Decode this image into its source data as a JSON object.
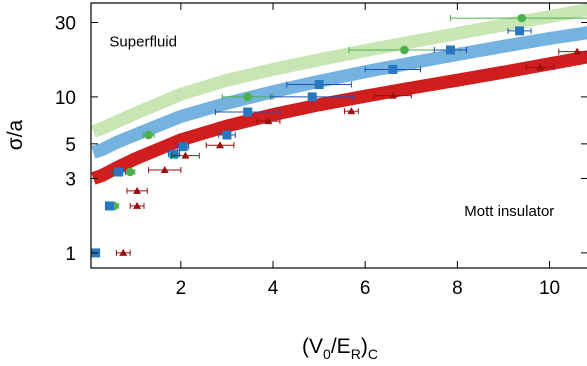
{
  "chart_data": {
    "type": "scatter",
    "title": "",
    "xlabel": "(V0/ER)C",
    "xlabel_parts": {
      "open": "(V",
      "sub1": "0",
      "slash": "/E",
      "sub2": "R",
      "close": ")",
      "sub3": "C"
    },
    "ylabel": "σ/a",
    "xlim": [
      0.05,
      10.9
    ],
    "ylim": [
      0.8,
      40
    ],
    "yscale": "log",
    "grid": false,
    "legend": "none",
    "x_ticks": [
      2,
      4,
      6,
      8,
      10
    ],
    "x_tick_labels": [
      "2",
      "4",
      "6",
      "8",
      "10"
    ],
    "y_ticks": [
      1,
      3,
      5,
      10,
      30
    ],
    "y_tick_labels": [
      "1",
      "3",
      "5",
      "10",
      "30"
    ],
    "annotations": [
      {
        "text": "Superfluid",
        "x": 0.45,
        "y": 21
      },
      {
        "text": "Mott insulator",
        "x": 8.15,
        "y": 1.72
      }
    ],
    "bands": [
      {
        "color": "#c8e6b4",
        "points": [
          [
            0.1,
            6.0
          ],
          [
            0.3,
            6.3
          ],
          [
            0.6,
            6.9
          ],
          [
            1.0,
            7.8
          ],
          [
            2.0,
            10.4
          ],
          [
            3.0,
            12.8
          ],
          [
            4.0,
            15.0
          ],
          [
            5.0,
            17.3
          ],
          [
            6.0,
            19.8
          ],
          [
            7.0,
            22.5
          ],
          [
            8.0,
            25.5
          ],
          [
            9.0,
            28.9
          ],
          [
            10.0,
            32.7
          ],
          [
            10.9,
            36.5
          ]
        ]
      },
      {
        "color": "#74b2e0",
        "points": [
          [
            0.1,
            4.4
          ],
          [
            0.3,
            4.6
          ],
          [
            0.6,
            5.1
          ],
          [
            1.0,
            5.7
          ],
          [
            2.0,
            7.5
          ],
          [
            3.0,
            9.1
          ],
          [
            4.0,
            10.8
          ],
          [
            5.0,
            12.6
          ],
          [
            6.0,
            14.5
          ],
          [
            7.0,
            16.5
          ],
          [
            8.0,
            18.7
          ],
          [
            9.0,
            21.1
          ],
          [
            10.0,
            23.7
          ],
          [
            10.9,
            26.0
          ]
        ]
      },
      {
        "color": "#d01e1e",
        "points": [
          [
            0.1,
            3.0
          ],
          [
            0.3,
            3.15
          ],
          [
            0.6,
            3.5
          ],
          [
            1.0,
            4.0
          ],
          [
            2.0,
            5.3
          ],
          [
            3.0,
            6.5
          ],
          [
            4.0,
            7.7
          ],
          [
            5.0,
            8.9
          ],
          [
            6.0,
            10.1
          ],
          [
            7.0,
            11.4
          ],
          [
            8.0,
            12.8
          ],
          [
            9.0,
            14.4
          ],
          [
            10.0,
            16.3
          ],
          [
            10.9,
            18.2
          ]
        ]
      }
    ],
    "series": [
      {
        "marker": "circle",
        "color": "#4cb04c",
        "errcolor": "#4cb04c",
        "points": [
          {
            "x": 0.15,
            "y": 1.0,
            "xerr": 0.05
          },
          {
            "x": 0.55,
            "y": 2.0,
            "xerr": 0.1
          },
          {
            "x": 0.9,
            "y": 3.3,
            "xerr": 0.1
          },
          {
            "x": 1.3,
            "y": 5.7,
            "xerr": 0.12
          },
          {
            "x": 3.45,
            "y": 10.0,
            "xerr": 0.55
          },
          {
            "x": 6.85,
            "y": 20.0,
            "xerr": 1.2
          },
          {
            "x": 9.4,
            "y": 32.0,
            "xerr": 1.55
          }
        ]
      },
      {
        "marker": "square",
        "color": "#2878c0",
        "errcolor": "#2050b0",
        "points": [
          {
            "x": 0.15,
            "y": 1.0,
            "xerr": 0.05
          },
          {
            "x": 0.45,
            "y": 2.0,
            "xerr": 0.08
          },
          {
            "x": 0.65,
            "y": 3.3,
            "xerr": 0.15
          },
          {
            "x": 1.85,
            "y": 4.3,
            "xerr": 0.12
          },
          {
            "x": 2.05,
            "y": 4.8,
            "xerr": 0.12
          },
          {
            "x": 3.0,
            "y": 5.7,
            "xerr": 0.18
          },
          {
            "x": 3.45,
            "y": 8.0,
            "xerr": 0.7
          },
          {
            "x": 4.85,
            "y": 10.0,
            "xerr": 0.9
          },
          {
            "x": 5.0,
            "y": 12.0,
            "xerr": 0.7
          },
          {
            "x": 6.6,
            "y": 15.0,
            "xerr": 0.6
          },
          {
            "x": 7.85,
            "y": 20.0,
            "xerr": 0.35
          },
          {
            "x": 9.35,
            "y": 26.5,
            "xerr": 0.25
          }
        ]
      },
      {
        "marker": "triangle",
        "color": "#9a1010",
        "errcolor": "#9a1010",
        "points": [
          {
            "x": 0.75,
            "y": 1.0,
            "xerr": 0.15
          },
          {
            "x": 1.05,
            "y": 2.0,
            "xerr": 0.15
          },
          {
            "x": 1.05,
            "y": 2.5,
            "xerr": 0.22
          },
          {
            "x": 1.65,
            "y": 3.4,
            "xerr": 0.35
          },
          {
            "x": 2.1,
            "y": 4.2,
            "xerr": 0.3
          },
          {
            "x": 2.85,
            "y": 4.9,
            "xerr": 0.3
          },
          {
            "x": 3.9,
            "y": 7.0,
            "xerr": 0.25
          },
          {
            "x": 5.7,
            "y": 8.1,
            "xerr": 0.15
          },
          {
            "x": 6.6,
            "y": 10.2,
            "xerr": 0.4
          },
          {
            "x": 9.8,
            "y": 15.5,
            "xerr": 0.3
          },
          {
            "x": 10.6,
            "y": 19.5,
            "xerr": 0.4
          }
        ]
      }
    ]
  }
}
